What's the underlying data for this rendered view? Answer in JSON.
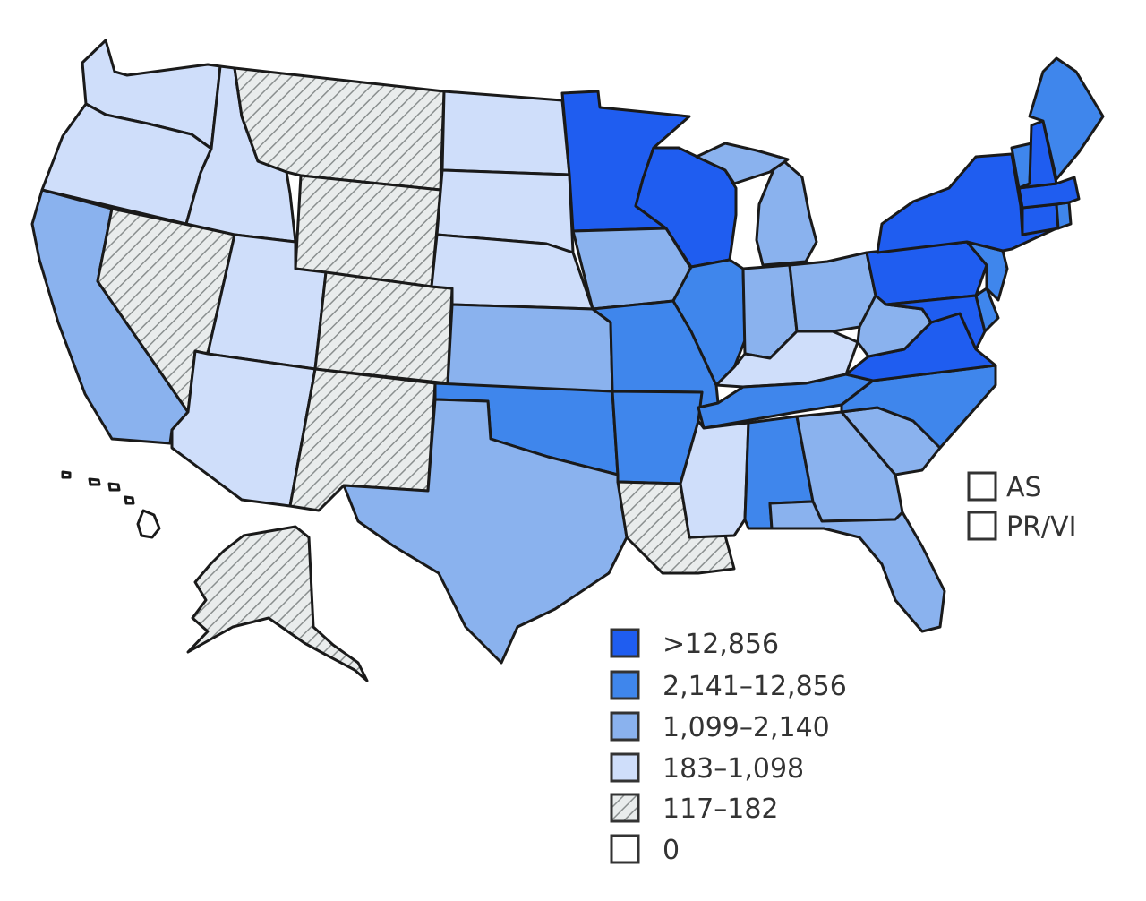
{
  "colors": {
    "c5": "#1f5df0",
    "c4": "#3f86ec",
    "c3": "#8ab2ee",
    "c2": "#cfdefa",
    "c0": "#ffffff",
    "hatch_bg": "#e9ecec",
    "hatch_line": "#8a8f8f"
  },
  "classes": [
    {
      "id": "c5",
      "label": ">12,856"
    },
    {
      "id": "c4",
      "label": "2,141–12,856"
    },
    {
      "id": "c3",
      "label": "1,099–2,140"
    },
    {
      "id": "c2",
      "label": "183–1,098"
    },
    {
      "id": "c1",
      "label": "117–182",
      "hatched": true
    },
    {
      "id": "c0",
      "label": "0"
    }
  ],
  "territories": [
    {
      "code": "AS",
      "label": "AS",
      "class": "c0"
    },
    {
      "code": "PR/VI",
      "label": "PR/VI",
      "class": "c0"
    }
  ],
  "states": [
    {
      "code": "WA",
      "class": "c2"
    },
    {
      "code": "OR",
      "class": "c2"
    },
    {
      "code": "CA",
      "class": "c3"
    },
    {
      "code": "NV",
      "class": "c1"
    },
    {
      "code": "ID",
      "class": "c2"
    },
    {
      "code": "MT",
      "class": "c1"
    },
    {
      "code": "WY",
      "class": "c1"
    },
    {
      "code": "UT",
      "class": "c2"
    },
    {
      "code": "AZ",
      "class": "c2"
    },
    {
      "code": "CO",
      "class": "c1"
    },
    {
      "code": "NM",
      "class": "c1"
    },
    {
      "code": "ND",
      "class": "c2"
    },
    {
      "code": "SD",
      "class": "c2"
    },
    {
      "code": "NE",
      "class": "c2"
    },
    {
      "code": "KS",
      "class": "c3"
    },
    {
      "code": "OK",
      "class": "c4"
    },
    {
      "code": "TX",
      "class": "c3"
    },
    {
      "code": "MN",
      "class": "c5"
    },
    {
      "code": "IA",
      "class": "c3"
    },
    {
      "code": "MO",
      "class": "c4"
    },
    {
      "code": "AR",
      "class": "c4"
    },
    {
      "code": "LA",
      "class": "c1"
    },
    {
      "code": "WI",
      "class": "c5"
    },
    {
      "code": "IL",
      "class": "c4"
    },
    {
      "code": "MI",
      "class": "c3"
    },
    {
      "code": "IN",
      "class": "c3"
    },
    {
      "code": "OH",
      "class": "c3"
    },
    {
      "code": "KY",
      "class": "c2"
    },
    {
      "code": "TN",
      "class": "c4"
    },
    {
      "code": "MS",
      "class": "c2"
    },
    {
      "code": "AL",
      "class": "c4"
    },
    {
      "code": "GA",
      "class": "c3"
    },
    {
      "code": "FL",
      "class": "c3"
    },
    {
      "code": "SC",
      "class": "c3"
    },
    {
      "code": "NC",
      "class": "c4"
    },
    {
      "code": "VA",
      "class": "c5"
    },
    {
      "code": "WV",
      "class": "c3"
    },
    {
      "code": "PA",
      "class": "c5"
    },
    {
      "code": "NY",
      "class": "c5"
    },
    {
      "code": "MD",
      "class": "c5"
    },
    {
      "code": "DE",
      "class": "c4"
    },
    {
      "code": "NJ",
      "class": "c4"
    },
    {
      "code": "CT",
      "class": "c5"
    },
    {
      "code": "RI",
      "class": "c4"
    },
    {
      "code": "MA",
      "class": "c5"
    },
    {
      "code": "VT",
      "class": "c4"
    },
    {
      "code": "NH",
      "class": "c5"
    },
    {
      "code": "ME",
      "class": "c4"
    },
    {
      "code": "AK",
      "class": "c1"
    },
    {
      "code": "HI",
      "class": "c0"
    }
  ]
}
